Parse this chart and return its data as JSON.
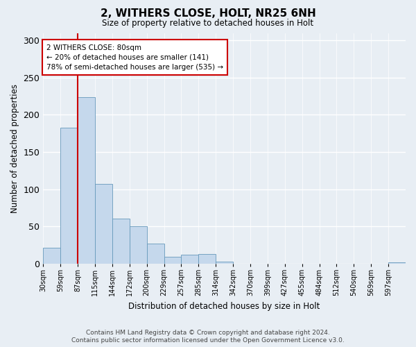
{
  "title": "2, WITHERS CLOSE, HOLT, NR25 6NH",
  "subtitle": "Size of property relative to detached houses in Holt",
  "xlabel": "Distribution of detached houses by size in Holt",
  "ylabel": "Number of detached properties",
  "bar_values": [
    21,
    183,
    224,
    107,
    60,
    50,
    27,
    9,
    12,
    13,
    3,
    0,
    0,
    0,
    0,
    0,
    0,
    0,
    0,
    0,
    2
  ],
  "bin_labels": [
    "30sqm",
    "59sqm",
    "87sqm",
    "115sqm",
    "144sqm",
    "172sqm",
    "200sqm",
    "229sqm",
    "257sqm",
    "285sqm",
    "314sqm",
    "342sqm",
    "370sqm",
    "399sqm",
    "427sqm",
    "455sqm",
    "484sqm",
    "512sqm",
    "540sqm",
    "569sqm",
    "597sqm"
  ],
  "bar_color": "#c5d8ec",
  "bar_edge_color": "#6699bb",
  "red_line_x": 2,
  "ylim": [
    0,
    310
  ],
  "yticks": [
    0,
    50,
    100,
    150,
    200,
    250,
    300
  ],
  "annotation_text": "2 WITHERS CLOSE: 80sqm\n← 20% of detached houses are smaller (141)\n78% of semi-detached houses are larger (535) →",
  "annotation_box_color": "#ffffff",
  "annotation_box_edge": "#cc0000",
  "footer_line1": "Contains HM Land Registry data © Crown copyright and database right 2024.",
  "footer_line2": "Contains public sector information licensed under the Open Government Licence v3.0.",
  "background_color": "#e8eef4",
  "plot_background": "#e8eef4",
  "grid_color": "#ffffff"
}
